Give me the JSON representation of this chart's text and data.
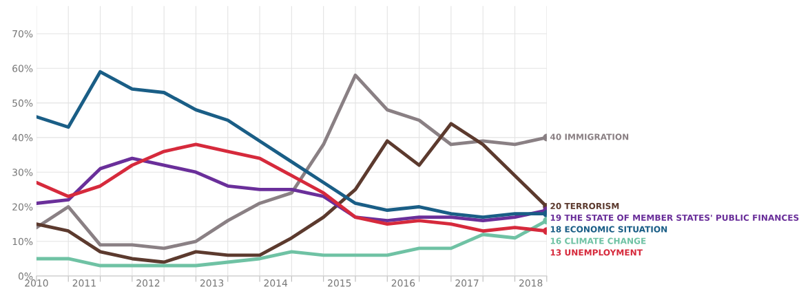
{
  "chart_data": {
    "type": "line",
    "x": [
      2010.25,
      2010.75,
      2011.25,
      2011.75,
      2012.25,
      2012.75,
      2013.25,
      2013.75,
      2014.25,
      2014.75,
      2015.25,
      2015.75,
      2016.25,
      2016.75,
      2017.25,
      2017.75,
      2018.25
    ],
    "series": [
      {
        "name": "IMMIGRATION",
        "color": "#8a8084",
        "values": [
          14,
          20,
          9,
          9,
          8,
          10,
          16,
          21,
          24,
          38,
          58,
          48,
          45,
          38,
          39,
          38,
          40
        ],
        "value_labels": [
          null,
          null,
          null,
          null,
          null,
          null,
          null,
          null,
          null,
          null,
          null,
          null,
          null,
          null,
          null,
          null,
          "40"
        ]
      },
      {
        "name": "TERRORISM",
        "color": "#5c3a2e",
        "values": [
          15,
          13,
          7,
          5,
          4,
          7,
          6,
          6,
          11,
          17,
          25,
          39,
          32,
          44,
          38,
          29,
          20
        ],
        "value_labels": [
          null,
          null,
          null,
          null,
          null,
          null,
          null,
          null,
          null,
          null,
          null,
          null,
          null,
          null,
          null,
          null,
          "20"
        ]
      },
      {
        "name": "THE STATE OF MEMBER STATES' PUBLIC FINANCES",
        "color": "#6a2f9a",
        "values": [
          21,
          22,
          31,
          34,
          32,
          30,
          26,
          25,
          25,
          23,
          17,
          16,
          17,
          17,
          16,
          17,
          19
        ],
        "value_labels": [
          null,
          null,
          null,
          null,
          null,
          null,
          null,
          null,
          null,
          null,
          null,
          null,
          null,
          null,
          null,
          null,
          "19"
        ]
      },
      {
        "name": "ECONOMIC SITUATION",
        "color": "#1a5e86",
        "values": [
          46,
          43,
          59,
          54,
          53,
          48,
          45,
          39,
          33,
          27,
          21,
          19,
          20,
          18,
          17,
          18,
          18
        ],
        "value_labels": [
          null,
          null,
          null,
          null,
          null,
          null,
          null,
          null,
          null,
          null,
          null,
          null,
          null,
          null,
          null,
          null,
          "18"
        ]
      },
      {
        "name": "CLIMATE CHANGE",
        "color": "#6fc2a4",
        "values": [
          5,
          5,
          3,
          3,
          3,
          3,
          4,
          5,
          7,
          6,
          6,
          6,
          8,
          8,
          12,
          11,
          16
        ],
        "value_labels": [
          null,
          null,
          null,
          null,
          null,
          null,
          null,
          null,
          null,
          null,
          null,
          null,
          null,
          null,
          null,
          null,
          "16"
        ]
      },
      {
        "name": "UNEMPLOYMENT",
        "color": "#d62a3c",
        "values": [
          27,
          23,
          26,
          32,
          36,
          38,
          36,
          34,
          29,
          24,
          17,
          15,
          16,
          15,
          13,
          14,
          13
        ],
        "value_labels": [
          null,
          null,
          null,
          null,
          null,
          null,
          null,
          null,
          null,
          null,
          null,
          null,
          null,
          null,
          null,
          null,
          "13"
        ]
      }
    ],
    "xlim": [
      2010.25,
      2018.25
    ],
    "xticks": [
      {
        "value": 2010.25,
        "label": "2010"
      },
      2011,
      2012,
      2013,
      2014,
      2015,
      2016,
      2017,
      2018,
      {
        "value": 2010.25,
        "label": null
      },
      {
        "value": 2010.75,
        "label": null
      },
      {
        "value": 2011.25,
        "label": null
      },
      {
        "value": 2011.75,
        "label": null
      },
      {
        "value": 2012.25,
        "label": null
      },
      {
        "value": 2012.75,
        "label": null
      },
      {
        "value": 2013.25,
        "label": null
      },
      {
        "value": 2013.75,
        "label": null
      },
      {
        "value": 2014.25,
        "label": null
      },
      {
        "value": 2014.75,
        "label": null
      },
      {
        "value": 2015.25,
        "label": null
      },
      {
        "value": 2015.75,
        "label": null
      },
      {
        "value": 2016.25,
        "label": null
      },
      {
        "value": 2016.75,
        "label": null
      },
      {
        "value": 2017.25,
        "label": null
      },
      {
        "value": 2017.75,
        "label": null
      },
      {
        "value": 2018.25,
        "label": null
      }
    ],
    "ylim": [
      0,
      78
    ],
    "yticks": [
      {
        "value": 0,
        "label": "0%"
      },
      {
        "value": 10,
        "label": "10%"
      },
      {
        "value": 20,
        "label": "20%"
      },
      {
        "value": 30,
        "label": "30%"
      },
      {
        "value": 40,
        "label": "40%"
      },
      {
        "value": 50,
        "label": "50%"
      },
      {
        "value": 60,
        "label": "60%"
      },
      {
        "value": 70,
        "label": "70%"
      }
    ],
    "grid": true,
    "legend": false,
    "line_style": "solid"
  }
}
